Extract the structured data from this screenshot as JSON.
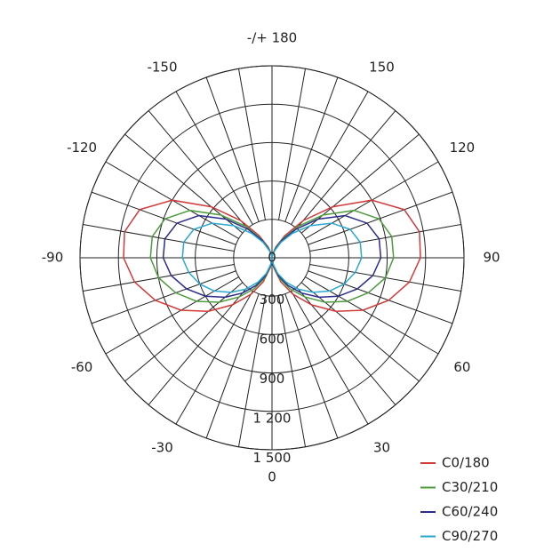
{
  "chart_data": {
    "type": "polar",
    "rlim": [
      0,
      1500
    ],
    "rticks": [
      0,
      300,
      600,
      900,
      {
        "value": 1200,
        "label": "1 200"
      },
      {
        "value": 1500,
        "label": "1 500"
      }
    ],
    "thetaticks": [
      {
        "value": 180,
        "label": "-/+ 180"
      },
      150,
      120,
      90,
      60,
      30,
      0,
      -30,
      -60,
      -90,
      -120,
      -150
    ],
    "thetagrid": [
      -170,
      -160,
      -150,
      -140,
      -130,
      -120,
      -110,
      -100,
      -90,
      -80,
      -70,
      -60,
      -50,
      -40,
      -30,
      -20,
      -10,
      0,
      10,
      20,
      30,
      40,
      50,
      60,
      70,
      80,
      90,
      100,
      110,
      120,
      130,
      140,
      150,
      160,
      170,
      180
    ],
    "legend": "lower right",
    "x": [
      -180,
      -170,
      -160,
      -150,
      -140,
      -130,
      -120,
      -110,
      -100,
      -90,
      -80,
      -70,
      -60,
      -50,
      -40,
      -30,
      -20,
      -10,
      0,
      10,
      20,
      30,
      40,
      50,
      60,
      70,
      80,
      90,
      100,
      110,
      120,
      130,
      140,
      150,
      160,
      170,
      180
    ],
    "series": [
      {
        "name": "C0/180",
        "color": "#d23a3a",
        "values": [
          0,
          30,
          90,
          200,
          380,
          620,
          900,
          1100,
          1170,
          1160,
          1090,
          970,
          820,
          650,
          480,
          330,
          200,
          80,
          0,
          80,
          200,
          330,
          480,
          650,
          820,
          970,
          1090,
          1160,
          1170,
          1100,
          900,
          620,
          380,
          200,
          90,
          30,
          0
        ]
      },
      {
        "name": "C30/210",
        "color": "#4c9c3c",
        "values": [
          0,
          25,
          80,
          170,
          320,
          520,
          740,
          890,
          950,
          950,
          900,
          800,
          680,
          540,
          400,
          280,
          170,
          70,
          0,
          70,
          170,
          280,
          400,
          540,
          680,
          800,
          900,
          950,
          950,
          890,
          740,
          520,
          320,
          170,
          80,
          25,
          0
        ]
      },
      {
        "name": "C60/240",
        "color": "#2c2c8c",
        "values": [
          0,
          20,
          70,
          160,
          290,
          470,
          660,
          790,
          850,
          850,
          800,
          710,
          600,
          480,
          360,
          250,
          150,
          60,
          0,
          60,
          150,
          250,
          360,
          480,
          600,
          710,
          800,
          850,
          850,
          790,
          660,
          470,
          290,
          160,
          70,
          20,
          0
        ]
      },
      {
        "name": "C90/270",
        "color": "#2aa8d2",
        "values": [
          0,
          20,
          60,
          140,
          250,
          390,
          540,
          650,
          700,
          700,
          660,
          600,
          520,
          420,
          320,
          220,
          130,
          50,
          0,
          50,
          130,
          220,
          320,
          420,
          520,
          600,
          660,
          700,
          700,
          650,
          540,
          390,
          250,
          140,
          60,
          20,
          0
        ]
      }
    ]
  }
}
